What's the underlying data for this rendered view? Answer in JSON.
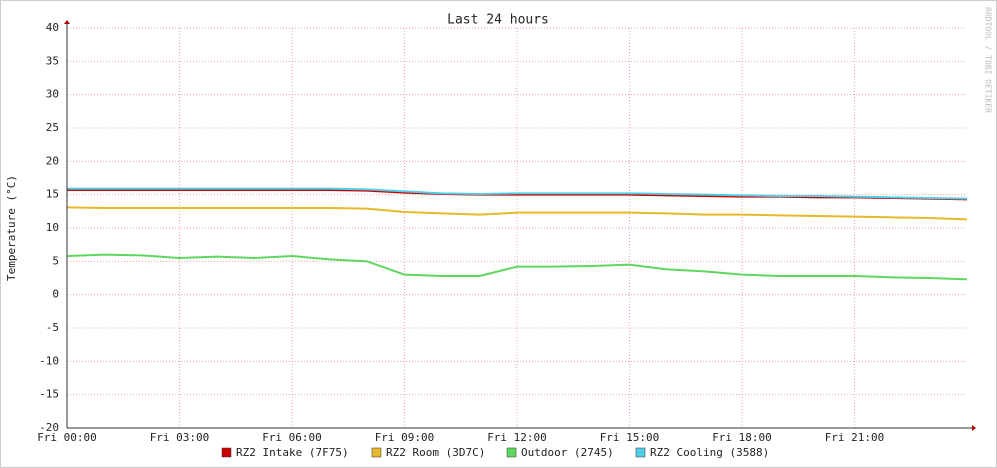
{
  "chart_data": {
    "type": "line",
    "title": "Last 24 hours",
    "y_label": "Temperature (°C)",
    "watermark": "RRDTOOL / TOBI OETIKER",
    "x": [
      0,
      1,
      2,
      3,
      4,
      5,
      6,
      7,
      8,
      9,
      10,
      11,
      12,
      13,
      14,
      15,
      16,
      17,
      18,
      19,
      20,
      21,
      22,
      23,
      24
    ],
    "xlim": [
      0,
      24
    ],
    "xticks": [
      {
        "value": 0,
        "label": "Fri 00:00"
      },
      {
        "value": 3,
        "label": "Fri 03:00"
      },
      {
        "value": 6,
        "label": "Fri 06:00"
      },
      {
        "value": 9,
        "label": "Fri 09:00"
      },
      {
        "value": 12,
        "label": "Fri 12:00"
      },
      {
        "value": 15,
        "label": "Fri 15:00"
      },
      {
        "value": 18,
        "label": "Fri 18:00"
      },
      {
        "value": 21,
        "label": "Fri 21:00"
      }
    ],
    "ylim": [
      -20,
      40
    ],
    "yticks": [
      -20,
      -15,
      -10,
      -5,
      0,
      5,
      10,
      15,
      20,
      25,
      30,
      35,
      40
    ],
    "grid": true,
    "series": [
      {
        "name": "RZ2 Intake (7F75)",
        "color": "#cc0000",
        "values": [
          15.7,
          15.7,
          15.7,
          15.7,
          15.7,
          15.7,
          15.7,
          15.7,
          15.6,
          15.3,
          15.1,
          15,
          15,
          15,
          15,
          15,
          14.9,
          14.8,
          14.7,
          14.7,
          14.6,
          14.6,
          14.5,
          14.4,
          14.3
        ]
      },
      {
        "name": "RZ2 Room (3D7C)",
        "color": "#e6b82a",
        "values": [
          13.1,
          13,
          13,
          13,
          13,
          13,
          13,
          13,
          12.9,
          12.4,
          12.2,
          12,
          12.3,
          12.3,
          12.3,
          12.3,
          12.2,
          12,
          12,
          11.9,
          11.8,
          11.7,
          11.6,
          11.5,
          11.3
        ]
      },
      {
        "name": "Outdoor (2745)",
        "color": "#5fd75f",
        "values": [
          5.8,
          6,
          5.9,
          5.5,
          5.7,
          5.5,
          5.8,
          5.3,
          5,
          3,
          2.8,
          2.8,
          4.2,
          4.2,
          4.3,
          4.5,
          3.8,
          3.5,
          3,
          2.8,
          2.8,
          2.8,
          2.6,
          2.5,
          2.3
        ]
      },
      {
        "name": "RZ2 Cooling (3588)",
        "color": "#4fd0e8",
        "values": [
          15.9,
          15.9,
          15.9,
          15.9,
          15.9,
          15.9,
          15.9,
          15.9,
          15.8,
          15.5,
          15.2,
          15.1,
          15.2,
          15.2,
          15.2,
          15.2,
          15.1,
          15,
          14.9,
          14.8,
          14.8,
          14.7,
          14.6,
          14.5,
          14.4
        ]
      }
    ]
  }
}
